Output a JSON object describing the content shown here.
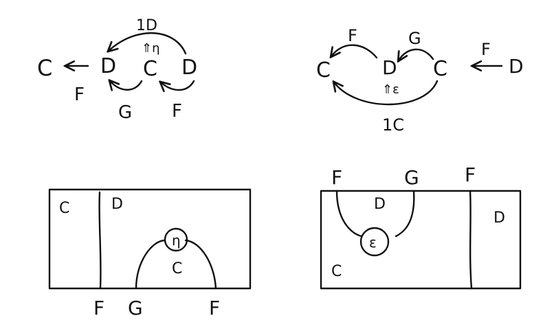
{
  "colors": {
    "ink": "#111111",
    "background": "#ffffff"
  },
  "diagram_left": {
    "objects": {
      "c_left": "C",
      "d_mid": "D",
      "c_mid": "C",
      "d_right": "D"
    },
    "arrows": {
      "f_to_c": "F",
      "g_c_to_d": "G",
      "f_d_to_c": "F",
      "identity_d": "1D",
      "two_cell": "⇑η"
    }
  },
  "diagram_right": {
    "objects": {
      "c_left": "C",
      "d_mid": "D",
      "c_right": "C",
      "d_right": "D"
    },
    "arrows": {
      "f_d_to_c": "F",
      "g_c_to_d": "G",
      "f_d_to_c_right": "F",
      "identity_c": "1C",
      "two_cell": "⇑ε"
    }
  },
  "string_left": {
    "regions": {
      "c_region": "C",
      "d_region": "D",
      "c_inner": "C"
    },
    "node": "η",
    "bottom_labels": {
      "f1": "F",
      "g": "G",
      "f2": "F"
    }
  },
  "string_right": {
    "regions": {
      "d_inner": "D",
      "d_right": "D",
      "c_region": "C"
    },
    "node": "ε",
    "top_labels": {
      "f1": "F",
      "g": "G",
      "f2": "F"
    }
  }
}
